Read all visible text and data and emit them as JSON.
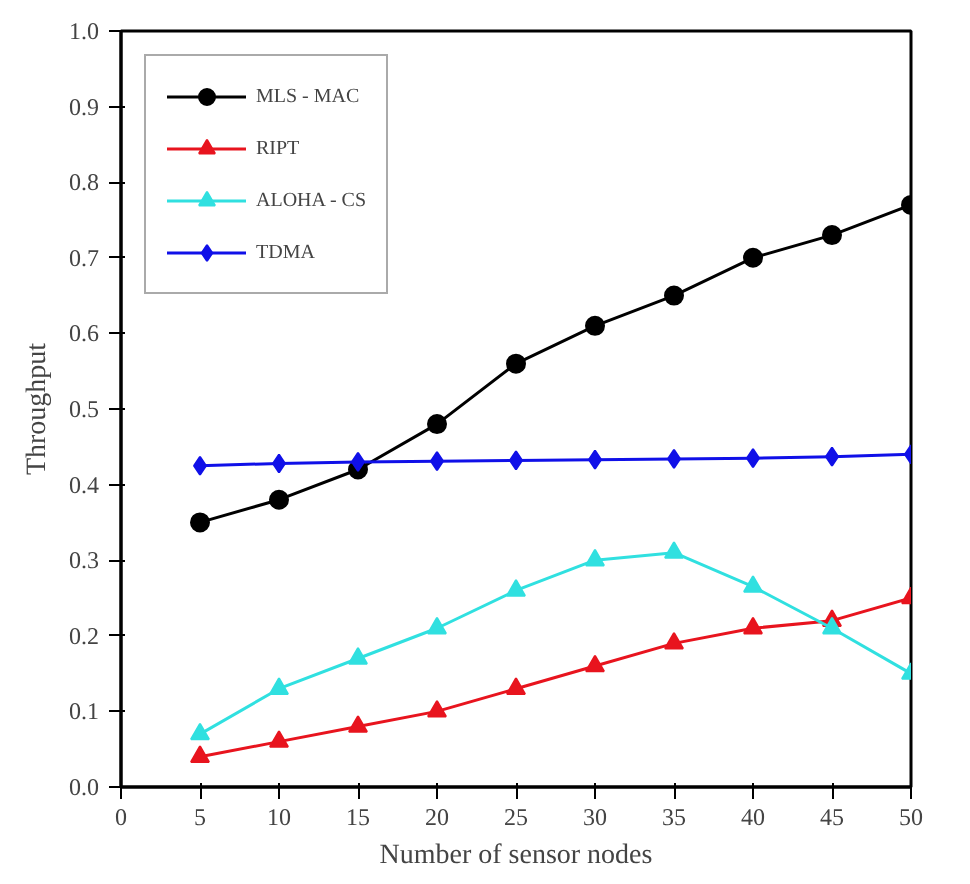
{
  "chart_data": {
    "type": "line",
    "xlabel": "Number of sensor nodes",
    "ylabel": "Throughput",
    "x": [
      5,
      10,
      15,
      20,
      25,
      30,
      35,
      40,
      45,
      50
    ],
    "series": [
      {
        "name": "MLS - MAC",
        "color": "#000000",
        "marker": "circle",
        "values": [
          0.35,
          0.38,
          0.42,
          0.48,
          0.56,
          0.61,
          0.65,
          0.7,
          0.73,
          0.77
        ]
      },
      {
        "name": "RIPT",
        "color": "#e8141e",
        "marker": "triangle",
        "values": [
          0.04,
          0.06,
          0.08,
          0.1,
          0.13,
          0.16,
          0.19,
          0.21,
          0.22,
          0.25
        ]
      },
      {
        "name": "ALOHA - CS",
        "color": "#30e0e0",
        "marker": "triangle",
        "values": [
          0.07,
          0.13,
          0.17,
          0.21,
          0.26,
          0.3,
          0.31,
          0.265,
          0.21,
          0.15
        ]
      },
      {
        "name": "TDMA",
        "color": "#1010e8",
        "marker": "diamond",
        "values": [
          0.425,
          0.428,
          0.43,
          0.431,
          0.432,
          0.433,
          0.434,
          0.435,
          0.437,
          0.44
        ]
      }
    ],
    "xlim": [
      0,
      50
    ],
    "ylim": [
      0,
      1.0
    ],
    "xticks": [
      0,
      5,
      10,
      15,
      20,
      25,
      30,
      35,
      40,
      45,
      50
    ],
    "yticks": [
      {
        "value": 0,
        "label": "0.0"
      },
      0.1,
      0.2,
      0.3,
      0.4,
      0.5,
      0.6,
      0.7,
      0.8,
      0.9,
      {
        "value": 1,
        "label": "1.0"
      }
    ],
    "grid": false,
    "legend": "top left",
    "line_style": "solid"
  }
}
